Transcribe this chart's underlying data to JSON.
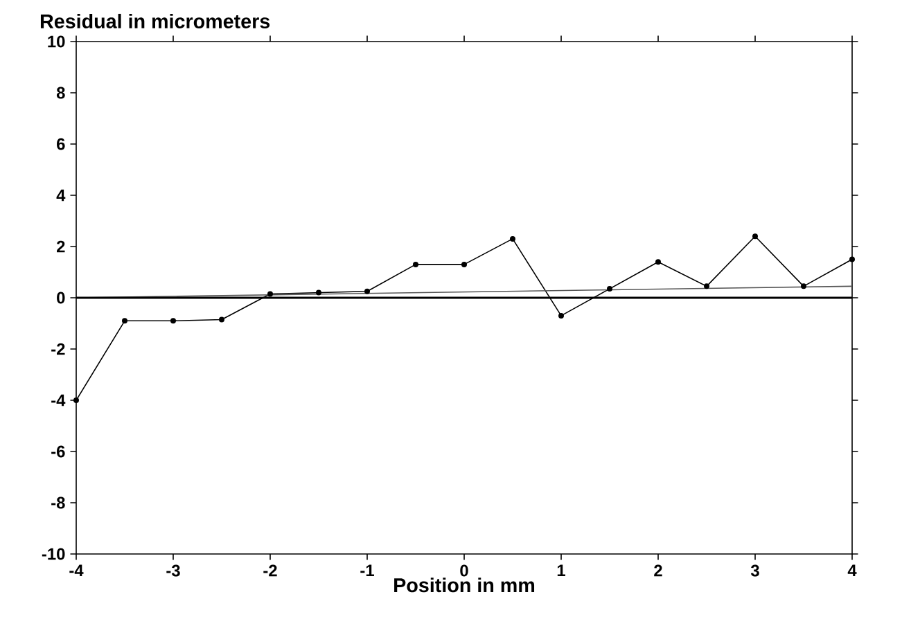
{
  "chart_data": {
    "type": "line",
    "ylabel": "Residual in micrometers",
    "xlabel": "Position in mm",
    "xlim": [
      -4,
      4
    ],
    "ylim": [
      -10,
      10
    ],
    "xticks": [
      -4,
      -3,
      -2,
      -1,
      0,
      1,
      2,
      3,
      4
    ],
    "yticks": [
      -10,
      -8,
      -6,
      -4,
      -2,
      0,
      2,
      4,
      6,
      8,
      10
    ],
    "grid": false,
    "marker": "circle",
    "line_style": "solid",
    "series": [
      {
        "color": "#000000",
        "x": [
          -4,
          -3.5,
          -3,
          -2.5,
          -2,
          -1.5,
          -1,
          -0.5,
          0,
          0.5,
          1,
          1.5,
          2,
          2.5,
          3,
          3.5,
          4
        ],
        "values": [
          -4.0,
          -0.9,
          -0.9,
          -0.85,
          0.15,
          0.2,
          0.25,
          1.3,
          1.3,
          2.3,
          -0.7,
          0.35,
          1.4,
          0.45,
          2.4,
          0.45,
          1.5
        ]
      },
      {
        "color": "#555555",
        "type": "line",
        "marker": "none",
        "x": [
          -4,
          4
        ],
        "values": [
          0.0,
          0.45
        ]
      }
    ],
    "ref_lines": [
      {
        "axis": "y",
        "value": 0,
        "color": "#000000"
      }
    ]
  }
}
